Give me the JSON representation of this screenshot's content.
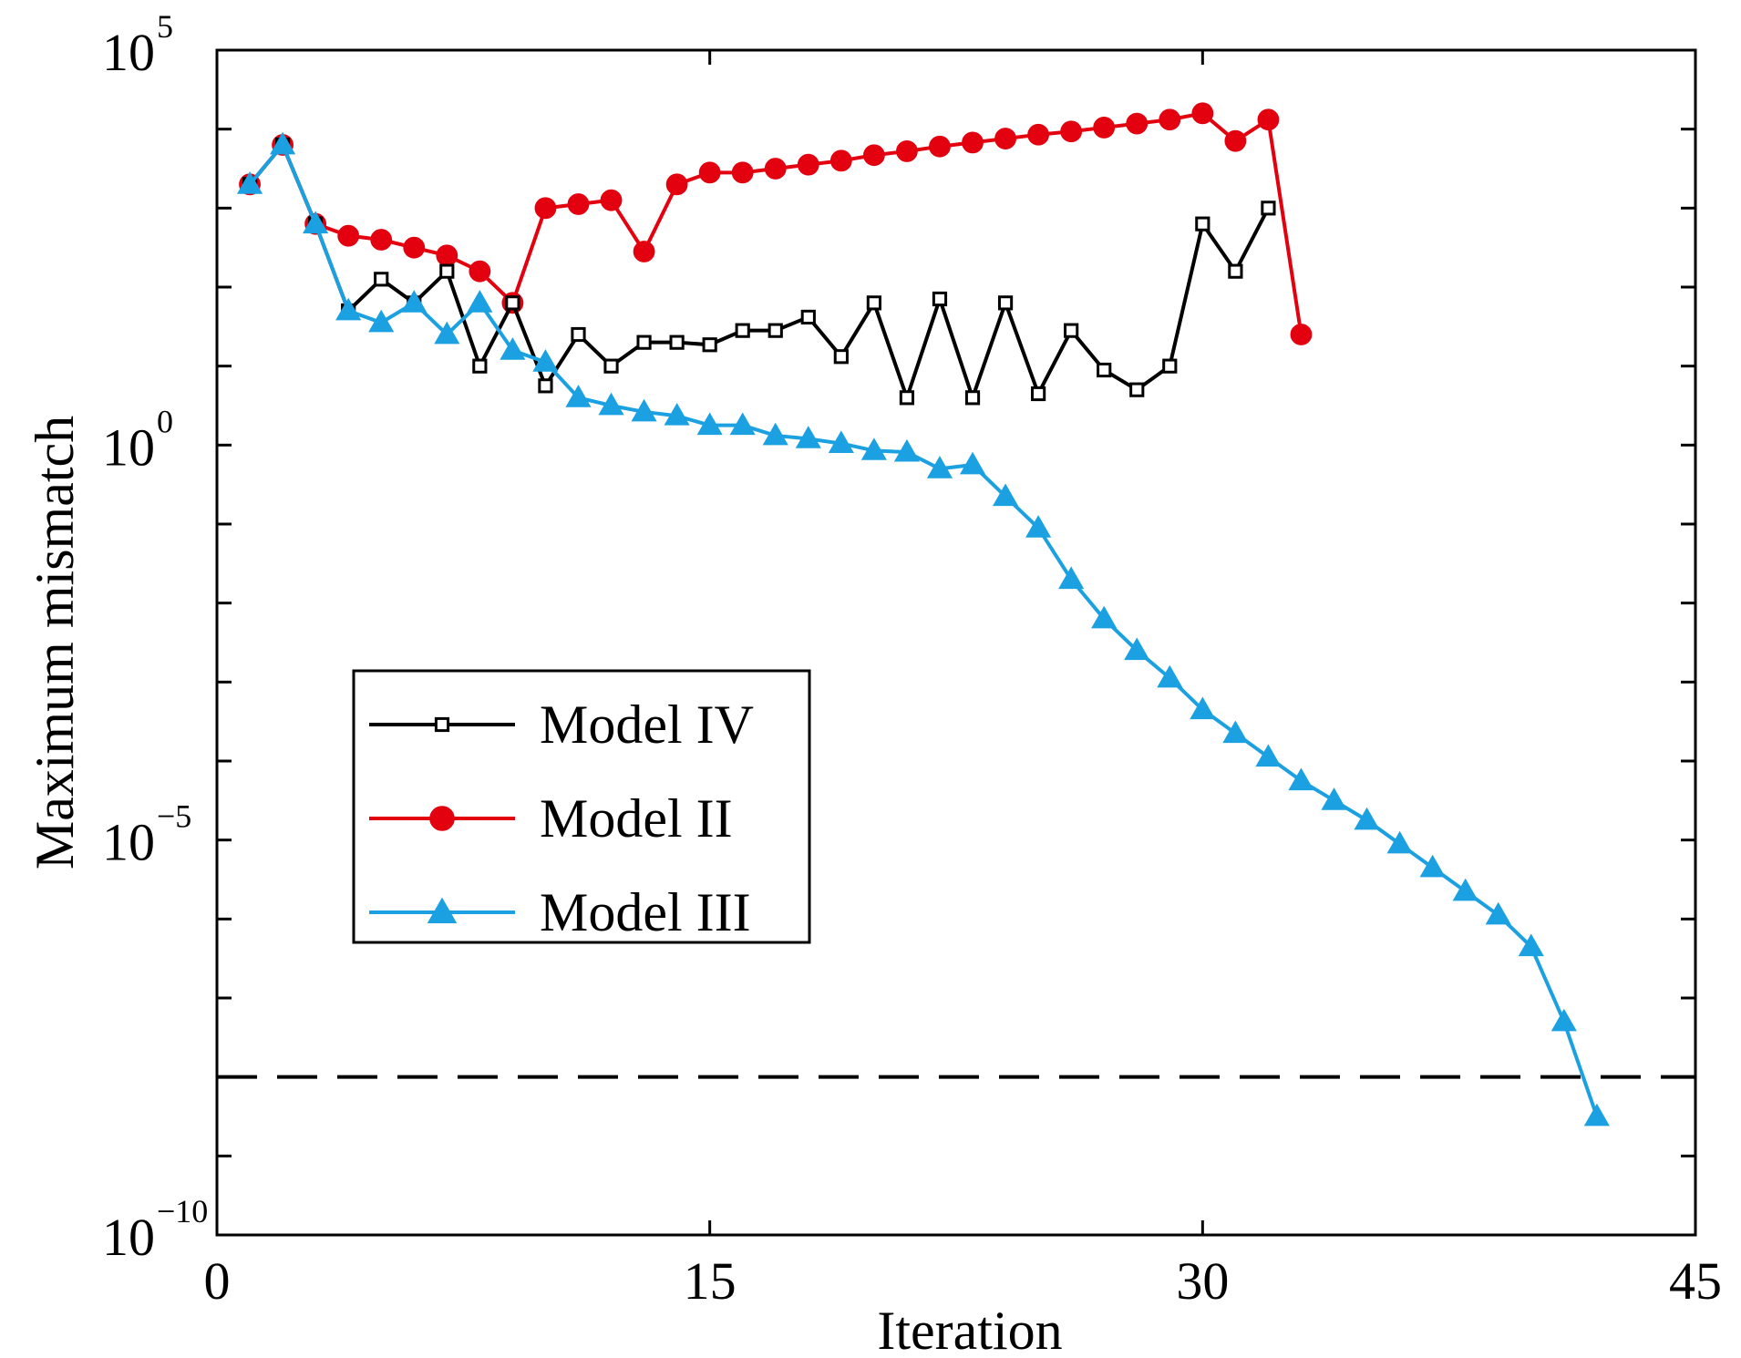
{
  "chart_data": {
    "type": "line",
    "title": "",
    "xlabel": "Iteration",
    "ylabel": "Maximum mismatch",
    "xlim": [
      0,
      45
    ],
    "ylim_log10": [
      -10,
      5
    ],
    "y_scale": "log",
    "x_ticks": [
      {
        "value": 0,
        "label": "0"
      },
      {
        "value": 15,
        "label": "15"
      },
      {
        "value": 30,
        "label": "30"
      },
      {
        "value": 45,
        "label": "45"
      }
    ],
    "y_ticks": [
      {
        "exponent": 5,
        "base": "10",
        "exp": "5"
      },
      {
        "exponent": 0,
        "base": "10",
        "exp": "0"
      },
      {
        "exponent": -5,
        "base": "10",
        "exp": "−5"
      },
      {
        "exponent": -10,
        "base": "10",
        "exp": "−10"
      }
    ],
    "threshold": {
      "log10": -8,
      "style": "dashed",
      "color": "#000000"
    },
    "legend_position": "lower-left",
    "series": [
      {
        "name": "Model IV",
        "color": "#000000",
        "marker": "square-open",
        "x": [
          1,
          2,
          3,
          4,
          5,
          6,
          7,
          8,
          9,
          10,
          11,
          12,
          13,
          14,
          15,
          16,
          17,
          18,
          19,
          20,
          21,
          22,
          23,
          24,
          25,
          26,
          27,
          28,
          29,
          30,
          31,
          32
        ],
        "log10_y": [
          3.3,
          3.8,
          2.8,
          1.7,
          2.1,
          1.8,
          2.2,
          1.0,
          1.8,
          0.75,
          1.4,
          1.0,
          1.3,
          1.3,
          1.27,
          1.45,
          1.45,
          1.62,
          1.12,
          1.8,
          0.6,
          1.85,
          0.6,
          1.8,
          0.65,
          1.45,
          0.95,
          0.7,
          1.0,
          2.8,
          2.2,
          3.0
        ]
      },
      {
        "name": "Model II",
        "color": "#e3000f",
        "marker": "circle-filled",
        "x": [
          1,
          2,
          3,
          4,
          5,
          6,
          7,
          8,
          9,
          10,
          11,
          12,
          13,
          14,
          15,
          16,
          17,
          18,
          19,
          20,
          21,
          22,
          23,
          24,
          25,
          26,
          27,
          28,
          29,
          30,
          31,
          32,
          33
        ],
        "log10_y": [
          3.3,
          3.8,
          2.8,
          2.65,
          2.6,
          2.5,
          2.4,
          2.2,
          1.8,
          3.0,
          3.05,
          3.1,
          2.45,
          3.3,
          3.45,
          3.45,
          3.5,
          3.55,
          3.6,
          3.67,
          3.72,
          3.78,
          3.83,
          3.88,
          3.93,
          3.97,
          4.02,
          4.07,
          4.12,
          4.2,
          3.85,
          4.12,
          1.4
        ]
      },
      {
        "name": "Model III",
        "color": "#1ba1e2",
        "marker": "triangle-filled",
        "x": [
          1,
          2,
          3,
          4,
          5,
          6,
          7,
          8,
          9,
          10,
          11,
          12,
          13,
          14,
          15,
          16,
          17,
          18,
          19,
          20,
          21,
          22,
          23,
          24,
          25,
          26,
          27,
          28,
          29,
          30,
          31,
          32,
          33,
          34,
          35,
          36,
          37,
          38,
          39,
          40,
          41,
          42
        ],
        "log10_y": [
          3.3,
          3.8,
          2.8,
          1.7,
          1.55,
          1.8,
          1.4,
          1.8,
          1.2,
          1.05,
          0.6,
          0.5,
          0.42,
          0.37,
          0.25,
          0.25,
          0.12,
          0.08,
          0.02,
          -0.07,
          -0.09,
          -0.3,
          -0.25,
          -0.65,
          -1.05,
          -1.7,
          -2.2,
          -2.6,
          -2.95,
          -3.35,
          -3.65,
          -3.95,
          -4.25,
          -4.5,
          -4.75,
          -5.05,
          -5.35,
          -5.65,
          -5.95,
          -6.35,
          -7.3,
          -8.5
        ]
      }
    ]
  }
}
